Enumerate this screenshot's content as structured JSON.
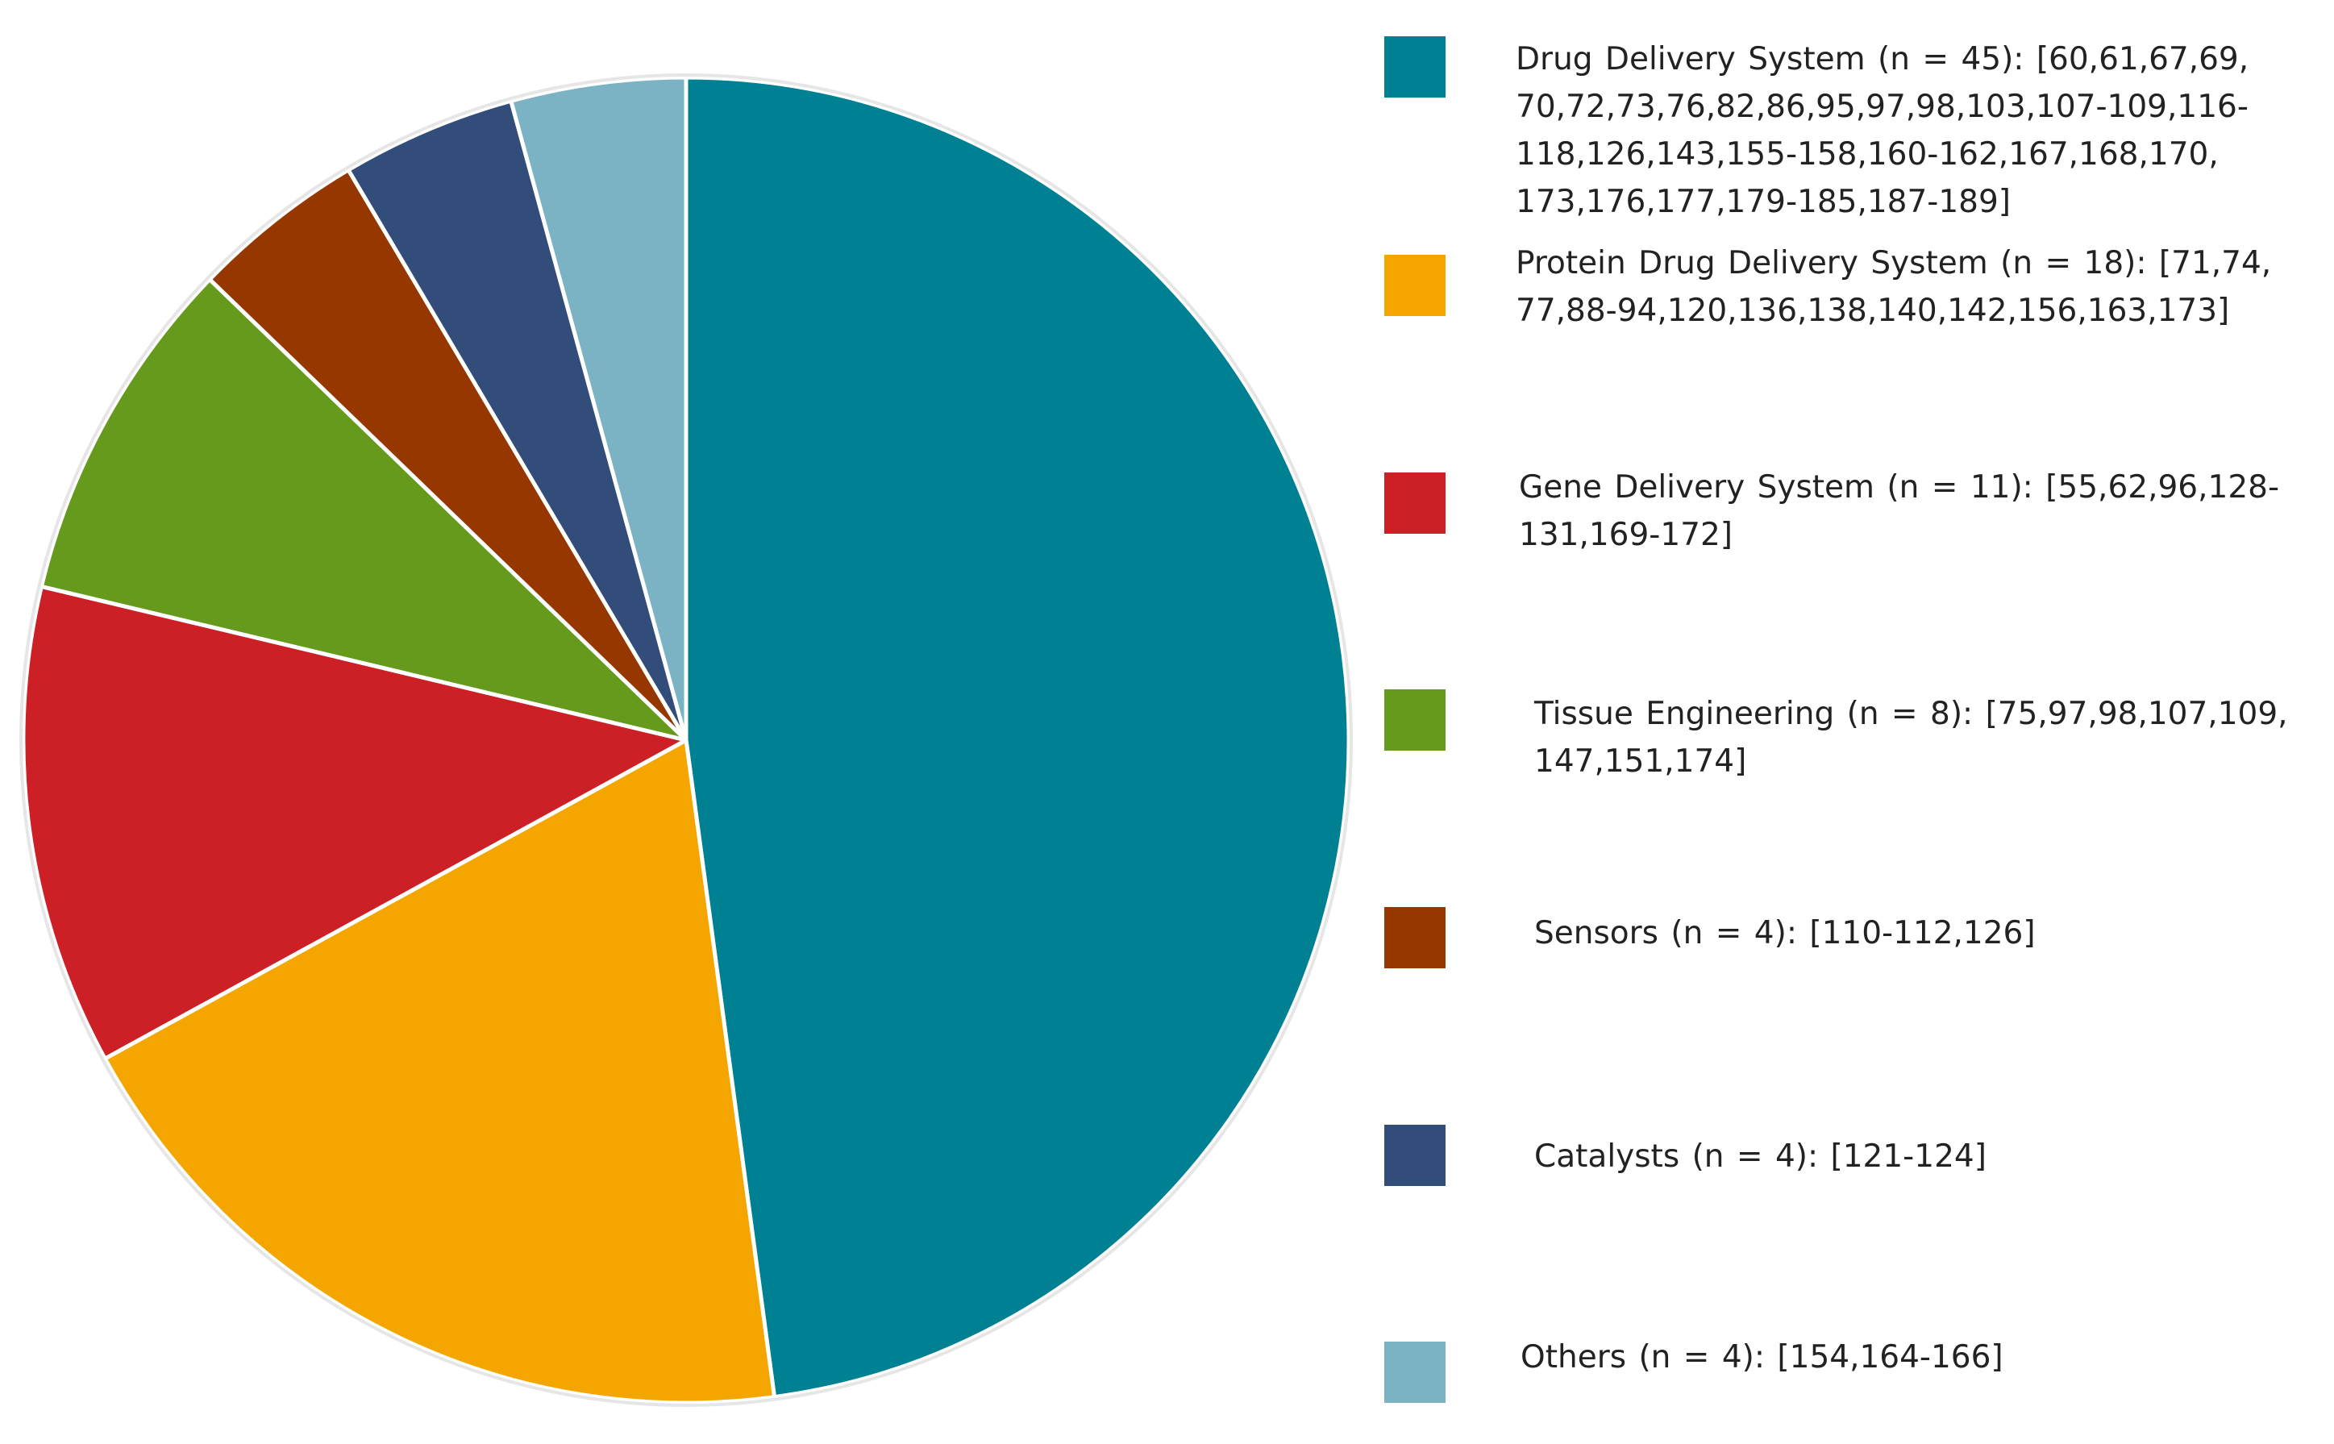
{
  "chart_data": {
    "type": "pie",
    "title": "",
    "slices": [
      {
        "label": "Drug Delivery System (n = 45): [60,61,67,69, 70,72,73,76,82,86,95,97,98,103,107-109,116-118,126,143,155-158,160-162,167,168,170, 173,176,177,179-185,187-189]",
        "value": 45,
        "color": "#008093"
      },
      {
        "label": "Protein Drug Delivery System (n = 18): [71,74, 77,88-94,120,136,138,140,142,156,163,173]",
        "value": 18,
        "color": "#F5A500"
      },
      {
        "label": "Gene Delivery System (n = 11): [55,62,96,128-131,169-172]",
        "value": 11,
        "color": "#CC2026"
      },
      {
        "label": "Tissue Engineering (n = 8): [75,97,98,107,109, 147,151,174]",
        "value": 8,
        "color": "#659A1D"
      },
      {
        "label": "Sensors (n = 4): [110-112,126]",
        "value": 4,
        "color": "#963700"
      },
      {
        "label": "Catalysts (n = 4): [121-124]",
        "value": 4,
        "color": "#334D7B"
      },
      {
        "label": "Others (n = 4): [154,164-166]",
        "value": 4,
        "color": "#7BB3C4"
      }
    ],
    "start_angle_deg": 0,
    "direction": "clockwise",
    "legend_position": "right"
  }
}
